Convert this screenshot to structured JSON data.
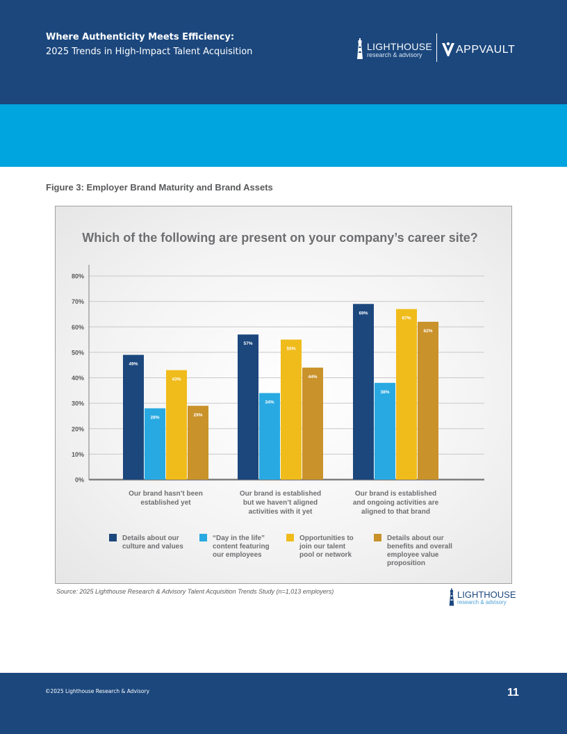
{
  "header": {
    "title": "Where Authenticity Meets Efficiency:",
    "subtitle": "2025 Trends in High-Impact Talent Acquisition",
    "logo_lighthouse_name": "LIGHTHOUSE",
    "logo_lighthouse_sub": "research & advisory",
    "logo_appvault": "APPVAULT"
  },
  "figure": {
    "title": "Figure 3: Employer Brand Maturity and Brand Assets",
    "source": "Source: 2025 Lighthouse Research & Advisory Talent Acquisition Trends Study (n=1,013 employers)"
  },
  "chart_data": {
    "type": "bar",
    "title": "Which of the following are present on your company’s career site?",
    "xlabel": "",
    "ylabel": "",
    "ylim": [
      0,
      80
    ],
    "yticks": [
      0,
      10,
      20,
      30,
      40,
      50,
      60,
      70,
      80
    ],
    "ytick_labels": [
      "0%",
      "10%",
      "20%",
      "30%",
      "40%",
      "50%",
      "60%",
      "70%",
      "80%"
    ],
    "grid": true,
    "legend_position": "bottom",
    "categories": [
      [
        "Our brand hasn’t been",
        "established yet"
      ],
      [
        "Our brand is established",
        "but we haven’t aligned",
        "activities with it yet"
      ],
      [
        "Our brand is established",
        "and ongoing activities are",
        "aligned to that brand"
      ]
    ],
    "series": [
      {
        "name": [
          "Details about our",
          "culture and values"
        ],
        "color": "#1b477d",
        "values": [
          49,
          57,
          69
        ],
        "labels": [
          "49%",
          "57%",
          "69%"
        ]
      },
      {
        "name": [
          "“Day in the life”",
          "content featuring",
          "our employees"
        ],
        "color": "#29a9e1",
        "values": [
          28,
          34,
          38
        ],
        "labels": [
          "28%",
          "34%",
          "38%"
        ]
      },
      {
        "name": [
          "Opportunities to",
          "join our talent",
          "pool or network"
        ],
        "color": "#f0bc1c",
        "values": [
          43,
          55,
          67
        ],
        "labels": [
          "43%",
          "55%",
          "67%"
        ]
      },
      {
        "name": [
          "Details about our",
          "benefits and overall",
          "employee value",
          "proposition"
        ],
        "color": "#c9922b",
        "values": [
          29,
          44,
          62
        ],
        "labels": [
          "29%",
          "44%",
          "62%"
        ]
      }
    ]
  },
  "footer": {
    "copyright": "©2025 Lighthouse Research & Advisory",
    "page_number": "11"
  }
}
